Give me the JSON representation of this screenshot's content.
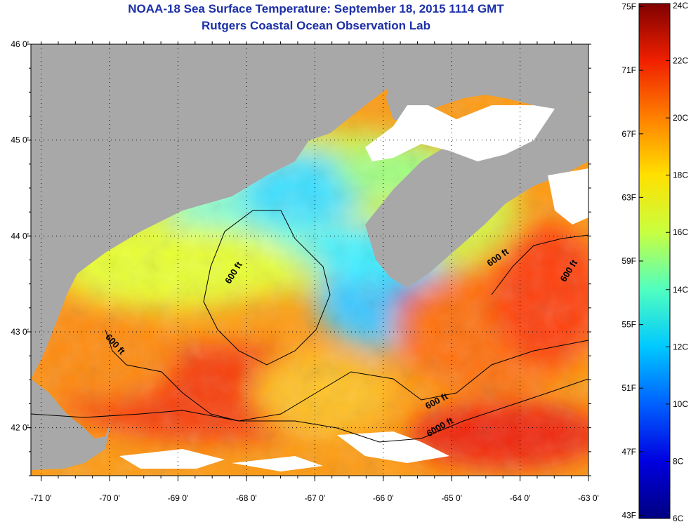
{
  "title": "NOAA-18 Sea Surface Temperature:  September 18, 2015 1114 GMT",
  "subtitle": "Rutgers Coastal Ocean Observation Lab",
  "map": {
    "lon_range": [
      -71.15,
      -63.0
    ],
    "lat_range": [
      41.5,
      46.0
    ],
    "lon_tick_labels": [
      {
        "lon": -71,
        "label": "-71 0'"
      },
      {
        "lon": -70,
        "label": "-70 0'"
      },
      {
        "lon": -69,
        "label": "-69 0'"
      },
      {
        "lon": -68,
        "label": "-68 0'"
      },
      {
        "lon": -67,
        "label": "-67 0'"
      },
      {
        "lon": -66,
        "label": "-66 0'"
      },
      {
        "lon": -65,
        "label": "-65 0'"
      },
      {
        "lon": -64,
        "label": "-64 0'"
      },
      {
        "lon": -63,
        "label": "-63 0'"
      }
    ],
    "lat_tick_labels": [
      {
        "lat": 46,
        "label": "46 0'"
      },
      {
        "lat": 45,
        "label": "45 0'"
      },
      {
        "lat": 44,
        "label": "44 0'"
      },
      {
        "lat": 43,
        "label": "43 0'"
      },
      {
        "lat": 42,
        "label": "42 0'"
      }
    ],
    "contour_labels": [
      {
        "text": "600 ft",
        "lon": -68.15,
        "lat": 43.6,
        "angle": -58
      },
      {
        "text": "600 ft",
        "lon": -69.95,
        "lat": 42.85,
        "angle": 48
      },
      {
        "text": "600 ft",
        "lon": -64.3,
        "lat": 43.75,
        "angle": -35
      },
      {
        "text": "600 ft",
        "lon": -63.25,
        "lat": 43.62,
        "angle": -58
      },
      {
        "text": "600 ft",
        "lon": -65.2,
        "lat": 42.25,
        "angle": -28
      },
      {
        "text": "6000 ft",
        "lon": -65.15,
        "lat": 41.98,
        "angle": -30
      }
    ],
    "colors": {
      "land": "#a8a8a8",
      "no_data": "#ffffff",
      "graticule": "#000000"
    }
  },
  "colorbar": {
    "min_c": 6,
    "max_c": 24,
    "celsius_labels": [
      "24C",
      "22C",
      "20C",
      "18C",
      "16C",
      "14C",
      "12C",
      "10C",
      "8C",
      "6C"
    ],
    "fahrenheit_labels": [
      "75F",
      "71F",
      "67F",
      "63F",
      "59F",
      "55F",
      "51F",
      "47F",
      "43F"
    ],
    "colors": [
      "#000080",
      "#0000e0",
      "#0060ff",
      "#00c8ff",
      "#50ffc0",
      "#c8ff40",
      "#ffe000",
      "#ff8000",
      "#f02000",
      "#800000"
    ]
  }
}
